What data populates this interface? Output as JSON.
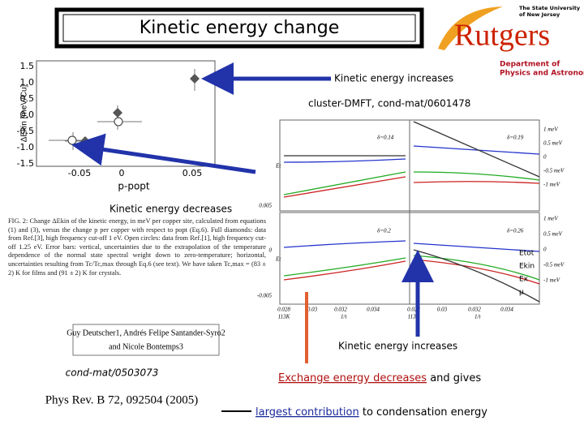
{
  "title": "Kinetic energy change",
  "logo": {
    "university": [
      "The State University",
      "of New Jersey"
    ],
    "name": "Rutgers",
    "department": [
      "Department of",
      "Physics and Astronomy"
    ]
  },
  "left_plot": {
    "y_label": "ΔEkin [meV/Cu]",
    "x_label": "p-popt",
    "y_ticks": [
      "1.5",
      "1.0",
      "0.5",
      "0.0",
      "-0.5",
      "-1.0",
      "-1.5"
    ],
    "x_ticks": [
      "-0.05",
      "0",
      "0.05"
    ]
  },
  "right_plot": {
    "deltas": [
      "δ=0.14",
      "δ=0.19",
      "δ=0.2",
      "δ=0.26"
    ],
    "scale_labels": [
      "1 meV",
      "0.5 meV",
      "0",
      "-0.5 meV",
      "-1 meV"
    ],
    "legend": [
      "Etot",
      "Ekin",
      "Ex",
      "μ"
    ],
    "y_ticks": [
      "0.005",
      "0",
      "-0.005"
    ],
    "y_label": "Et",
    "x_ticks": [
      "0.028",
      "0.03",
      "0.032",
      "0.034",
      "0.028",
      "0.03",
      "0.032",
      "0.034"
    ],
    "x_sub": [
      "113K",
      "113K"
    ],
    "x_label": "1/t"
  },
  "annotations": {
    "increases_top": "Kinetic energy increases",
    "dmft": "cluster-DMFT, cond-mat/0601478",
    "decreases": "Kinetic energy decreases",
    "increases_bottom": "Kinetic energy increases"
  },
  "caption": "FIG. 2: Change ΔEkin of the kinetic energy, in meV per copper site, calculated from equations (1) and (3), versus the change p per copper with respect to popt (Eq.6). Full diamonds: data from Ref.[3], high frequency cut-off 1 eV. Open circles: data from Ref.[1], high frequency cut-off 1.25 eV. Error bars: vertical, uncertainties due to the extrapolation of the temperature dependence of the normal state spectral weight down to zero-temperature; horizontal, uncertainties resulting from Tc/Tc,max through Eq.6 (see text). We have taken Tc,max = (83 ± 2) K for films and (91 ± 2) K for crystals.",
  "authors": [
    "Guy Deutscher1, Andrés Felipe Santander-Syro2",
    "and Nicole Bontemps3"
  ],
  "references": {
    "preprint": "cond-mat/0503073",
    "journal": "Phys Rev. B 72, 092504 (2005)"
  },
  "conclusion": {
    "part1": "Exchange energy decreases",
    "part2": " and gives",
    "part3": "largest contribution",
    "part4": " to condensation energy"
  }
}
